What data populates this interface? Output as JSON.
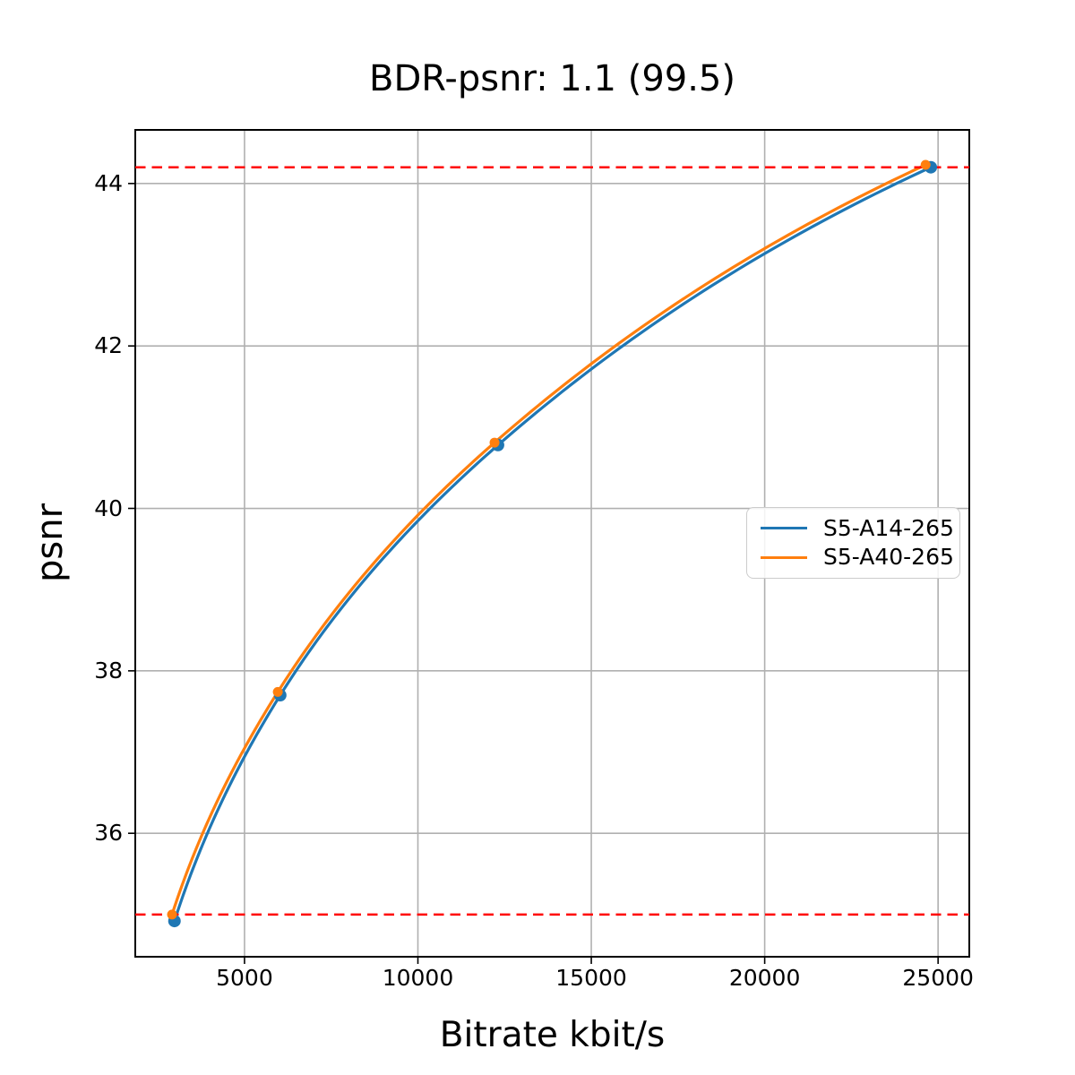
{
  "chart_data": {
    "type": "line",
    "title": "BDR-psnr: 1.1 (99.5)",
    "xlabel": "Bitrate kbit/s",
    "ylabel": "psnr",
    "xlim": [
      1850,
      25900
    ],
    "ylim": [
      34.48,
      44.66
    ],
    "x_ticks": [
      5000,
      10000,
      15000,
      20000,
      25000
    ],
    "y_ticks": [
      36,
      38,
      40,
      42,
      44
    ],
    "grid": true,
    "grid_color": "#b0b0b0",
    "spine_color": "#000000",
    "legend_position": "center-right",
    "series": [
      {
        "name": "S5-A14-265",
        "color": "#1f77b4",
        "marker": "circle",
        "marker_radius": 7,
        "points": [
          [
            2980,
            34.92
          ],
          [
            6030,
            37.7
          ],
          [
            12310,
            40.78
          ],
          [
            24790,
            44.2
          ]
        ]
      },
      {
        "name": "S5-A40-265",
        "color": "#ff7f0e",
        "marker": "circle",
        "marker_radius": 5.5,
        "points": [
          [
            2910,
            35.0
          ],
          [
            5960,
            37.74
          ],
          [
            12210,
            40.81
          ],
          [
            24640,
            44.23
          ]
        ]
      }
    ],
    "reference_lines": [
      {
        "y": 44.2,
        "color": "#ff0000",
        "style": "dashed"
      },
      {
        "y": 35.0,
        "color": "#ff0000",
        "style": "dashed"
      }
    ]
  }
}
